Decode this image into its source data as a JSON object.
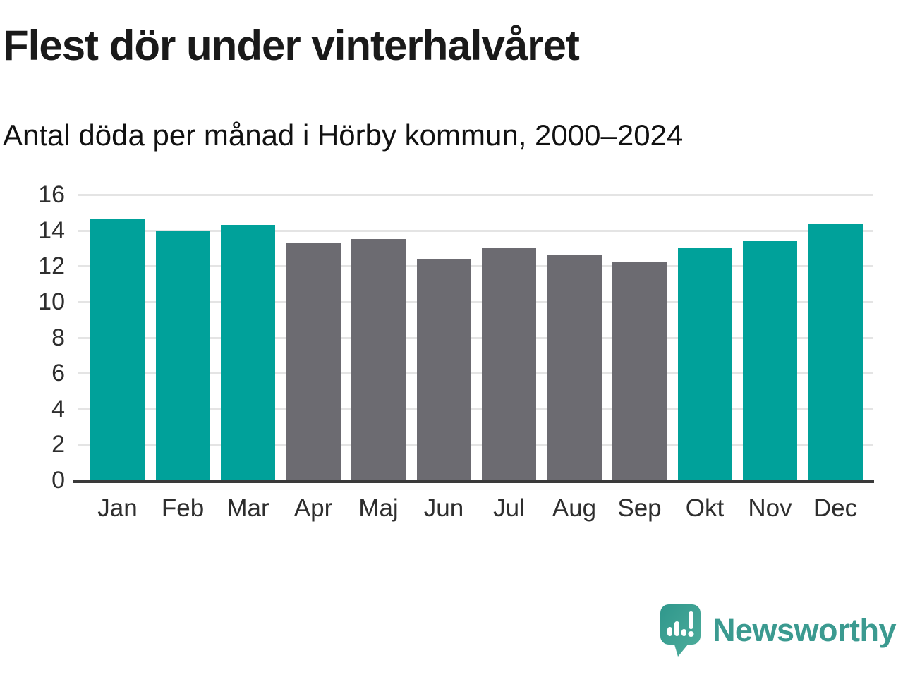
{
  "header": {
    "title": "Flest dör under vinterhalvåret",
    "subtitle": "Antal döda per månad i Hörby kommun, 2000–2024"
  },
  "chart_data": {
    "type": "bar",
    "title": "Flest dör under vinterhalvåret",
    "subtitle": "Antal döda per månad i Hörby kommun, 2000–2024",
    "categories": [
      "Jan",
      "Feb",
      "Mar",
      "Apr",
      "Maj",
      "Jun",
      "Jul",
      "Aug",
      "Sep",
      "Okt",
      "Nov",
      "Dec"
    ],
    "values": [
      14.6,
      14.0,
      14.3,
      13.3,
      13.5,
      12.4,
      13.0,
      12.6,
      12.2,
      13.0,
      13.4,
      14.4
    ],
    "bar_colors": [
      "#00a19a",
      "#00a19a",
      "#00a19a",
      "#6c6b71",
      "#6c6b71",
      "#6c6b71",
      "#6c6b71",
      "#6c6b71",
      "#6c6b71",
      "#00a19a",
      "#00a19a",
      "#00a19a"
    ],
    "xlabel": "",
    "ylabel": "",
    "ylim": [
      0,
      16
    ],
    "yticks": [
      0,
      2,
      4,
      6,
      8,
      10,
      12,
      14,
      16
    ],
    "grid": true,
    "legend_position": "none",
    "colors": {
      "winter_bar": "#00a19a",
      "summer_bar": "#6c6b71",
      "gridline": "#e4e4e4",
      "axis": "#3a3a3a",
      "tick_text": "#2e2e2e"
    }
  },
  "footer": {
    "brand": "Newsworthy",
    "brand_color": "#3b9a90",
    "logo_icon": "newsworthy-speech-bubble-chart-icon"
  }
}
